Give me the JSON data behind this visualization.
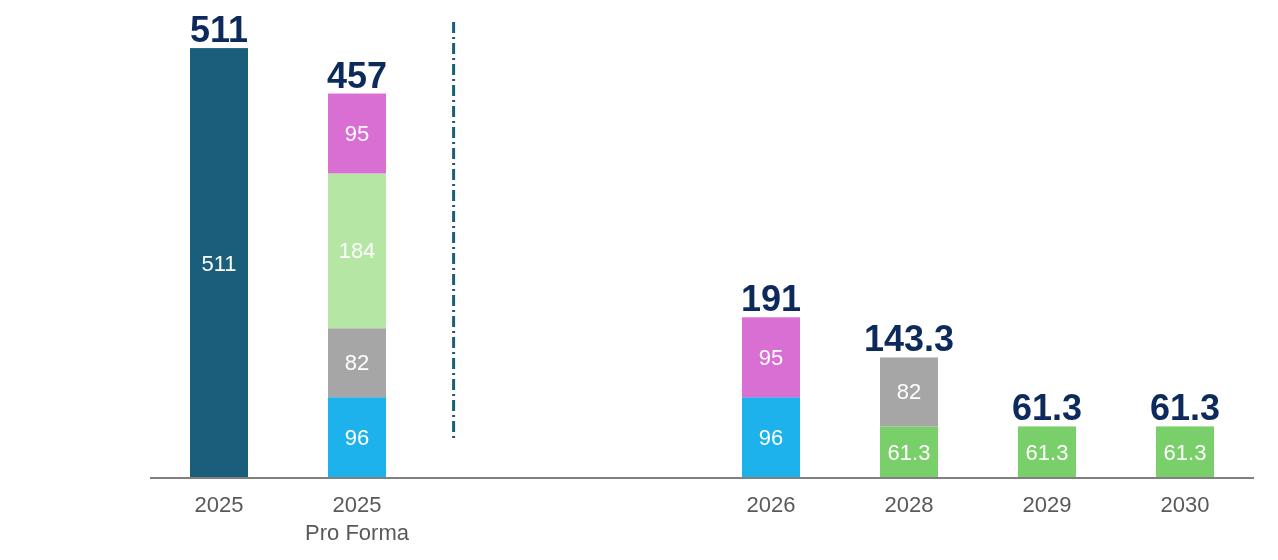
{
  "chart_data": {
    "type": "bar",
    "stacked": true,
    "data_labels": true,
    "grid": false,
    "legend": false,
    "categories": [
      "2025",
      "2025\nPro Forma",
      null,
      null,
      "2026",
      "2028",
      "2029",
      "2030"
    ],
    "series": [
      {
        "color": "#1b5e7b",
        "values": [
          511,
          null,
          null,
          null,
          null,
          null,
          null,
          null
        ]
      },
      {
        "color": "#79cf6a",
        "values": [
          null,
          null,
          null,
          null,
          null,
          61.3,
          61.3,
          61.3
        ]
      },
      {
        "color": "#1eb2ec",
        "values": [
          null,
          96,
          null,
          null,
          96,
          null,
          null,
          null
        ]
      },
      {
        "color": "#a6a6a6",
        "values": [
          null,
          82,
          null,
          null,
          null,
          82,
          null,
          null
        ]
      },
      {
        "color": "#b5e6a3",
        "values": [
          null,
          184,
          null,
          null,
          null,
          null,
          null,
          null
        ]
      },
      {
        "color": "#d96fd3",
        "values": [
          null,
          95,
          null,
          null,
          95,
          null,
          null,
          null
        ]
      }
    ],
    "totals": [
      "511",
      "457",
      null,
      null,
      "191",
      "143.3",
      "61.3",
      "61.3"
    ]
  }
}
